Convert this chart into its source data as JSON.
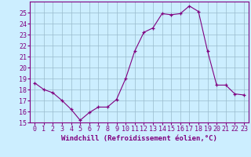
{
  "x": [
    0,
    1,
    2,
    3,
    4,
    5,
    6,
    7,
    8,
    9,
    10,
    11,
    12,
    13,
    14,
    15,
    16,
    17,
    18,
    19,
    20,
    21,
    22,
    23
  ],
  "y": [
    18.6,
    18.0,
    17.7,
    17.0,
    16.2,
    15.2,
    15.9,
    16.4,
    16.4,
    17.1,
    19.0,
    21.5,
    23.2,
    23.6,
    24.9,
    24.8,
    24.9,
    25.6,
    25.1,
    21.5,
    18.4,
    18.4,
    17.6,
    17.5
  ],
  "xlim": [
    -0.5,
    23.5
  ],
  "ylim": [
    15,
    26
  ],
  "yticks": [
    15,
    16,
    17,
    18,
    19,
    20,
    21,
    22,
    23,
    24,
    25
  ],
  "xticks": [
    0,
    1,
    2,
    3,
    4,
    5,
    6,
    7,
    8,
    9,
    10,
    11,
    12,
    13,
    14,
    15,
    16,
    17,
    18,
    19,
    20,
    21,
    22,
    23
  ],
  "line_color": "#800080",
  "marker": "+",
  "bg_color": "#cceeff",
  "grid_color": "#99bbcc",
  "xlabel": "Windchill (Refroidissement éolien,°C)",
  "xlabel_color": "#800080",
  "tick_color": "#800080",
  "spine_color": "#800080",
  "label_fontsize": 6.5,
  "tick_fontsize": 6.0
}
